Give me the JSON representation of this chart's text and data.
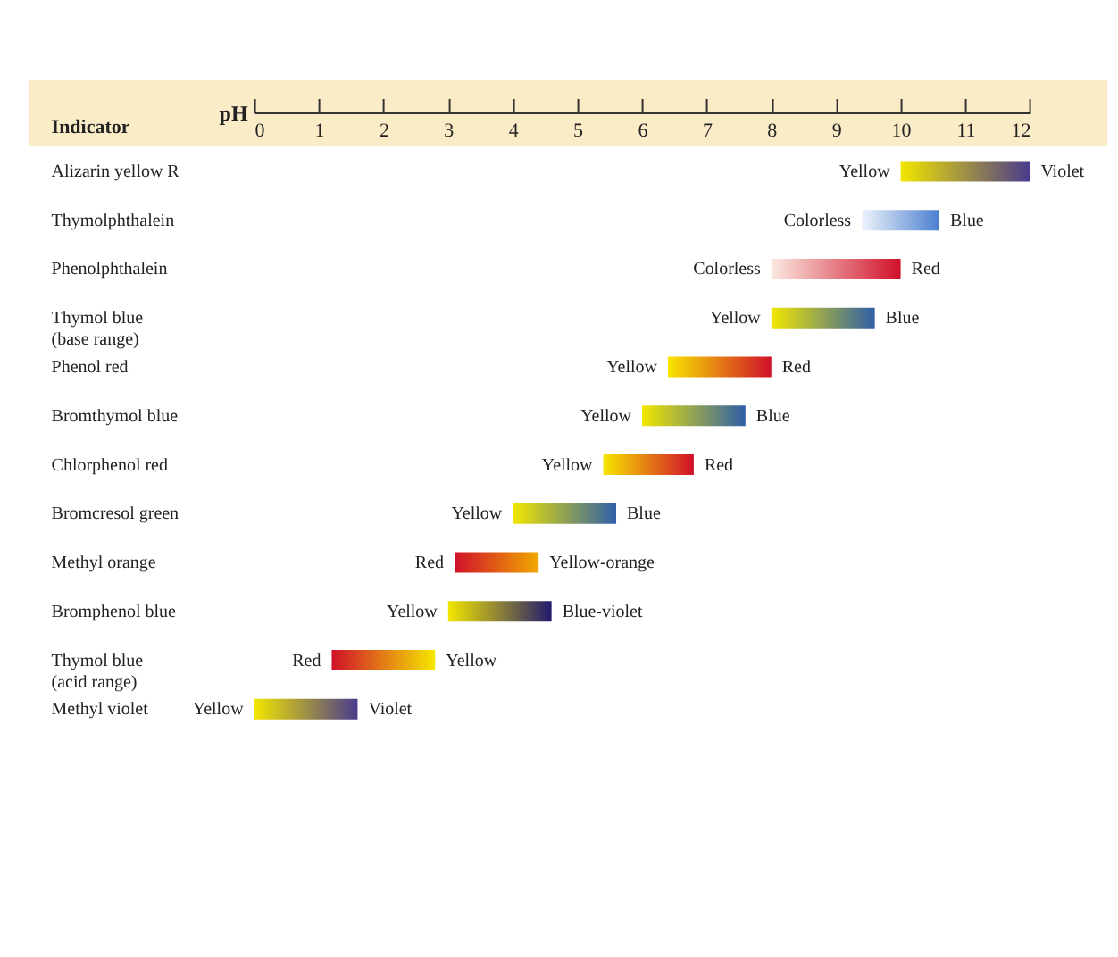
{
  "chart_data": {
    "type": "bar",
    "orientation": "horizontal",
    "xlabel": "pH",
    "ylabel": "Indicator",
    "categories": [
      "Alizarin yellow R",
      "Thymolphthalein",
      "Phenolphthalein",
      "Thymol blue (base range)",
      "Phenol red",
      "Bromthymol blue",
      "Chlorphenol red",
      "Bromcresol green",
      "Methyl orange",
      "Bromphenol blue",
      "Thymol blue (acid range)",
      "Methyl violet"
    ],
    "base": [
      10.0,
      9.4,
      8.0,
      8.0,
      6.4,
      6.0,
      5.4,
      4.0,
      3.1,
      3.0,
      1.2,
      0.0
    ],
    "values": [
      2.0,
      1.2,
      2.0,
      1.6,
      1.6,
      1.6,
      1.4,
      1.6,
      1.3,
      1.6,
      1.6,
      1.6
    ],
    "colors": [
      [
        "#f2e600",
        "#4a3a8c"
      ],
      [
        "#eef3fb",
        "#4a7fd0"
      ],
      [
        "#fbe9e0",
        "#d0102a"
      ],
      [
        "#f2e600",
        "#2f5fa8"
      ],
      [
        "#f7e600",
        "#d0102a"
      ],
      [
        "#f2e600",
        "#2f5fa8"
      ],
      [
        "#f7e600",
        "#d0102a"
      ],
      [
        "#f2e600",
        "#2f5fa8"
      ],
      [
        "#d0102a",
        "#f0a800"
      ],
      [
        "#f2e600",
        "#231a6e"
      ],
      [
        "#d0102a",
        "#f5e800"
      ],
      [
        "#f2e600",
        "#4a3a8c"
      ]
    ],
    "xlim": [
      0,
      12
    ],
    "xticks": [
      0,
      1,
      2,
      3,
      4,
      5,
      6,
      7,
      8,
      9,
      10,
      11,
      12
    ],
    "grid": false,
    "annotations": [
      {
        "text": "Yellow",
        "x": 10.0,
        "y": "Alizarin yellow R"
      },
      {
        "text": "Violet",
        "x": 12.0,
        "y": "Alizarin yellow R"
      },
      {
        "text": "Colorless",
        "x": 9.4,
        "y": "Thymolphthalein"
      },
      {
        "text": "Blue",
        "x": 10.6,
        "y": "Thymolphthalein"
      },
      {
        "text": "Colorless",
        "x": 8.0,
        "y": "Phenolphthalein"
      },
      {
        "text": "Red",
        "x": 10.0,
        "y": "Phenolphthalein"
      },
      {
        "text": "Yellow",
        "x": 8.0,
        "y": "Thymol blue (base range)"
      },
      {
        "text": "Blue",
        "x": 9.6,
        "y": "Thymol blue (base range)"
      },
      {
        "text": "Yellow",
        "x": 6.4,
        "y": "Phenol red"
      },
      {
        "text": "Red",
        "x": 8.0,
        "y": "Phenol red"
      },
      {
        "text": "Yellow",
        "x": 6.0,
        "y": "Bromthymol blue"
      },
      {
        "text": "Blue",
        "x": 7.6,
        "y": "Bromthymol blue"
      },
      {
        "text": "Yellow",
        "x": 5.4,
        "y": "Chlorphenol red"
      },
      {
        "text": "Red",
        "x": 6.8,
        "y": "Chlorphenol red"
      },
      {
        "text": "Yellow",
        "x": 4.0,
        "y": "Bromcresol green"
      },
      {
        "text": "Blue",
        "x": 5.6,
        "y": "Bromcresol green"
      },
      {
        "text": "Red",
        "x": 3.1,
        "y": "Methyl orange"
      },
      {
        "text": "Yellow-orange",
        "x": 4.4,
        "y": "Methyl orange"
      },
      {
        "text": "Yellow",
        "x": 3.0,
        "y": "Bromphenol blue"
      },
      {
        "text": "Blue-violet",
        "x": 4.6,
        "y": "Bromphenol blue"
      },
      {
        "text": "Red",
        "x": 1.2,
        "y": "Thymol blue (acid range)"
      },
      {
        "text": "Yellow",
        "x": 2.8,
        "y": "Thymol blue (acid range)"
      },
      {
        "text": "Yellow",
        "x": 0.0,
        "y": "Methyl violet"
      },
      {
        "text": "Violet",
        "x": 1.6,
        "y": "Methyl violet"
      }
    ]
  }
}
